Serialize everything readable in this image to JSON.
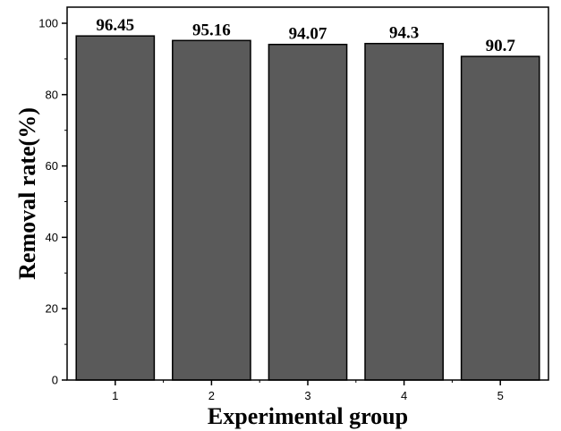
{
  "chart_data": {
    "type": "bar",
    "categories": [
      "1",
      "2",
      "3",
      "4",
      "5"
    ],
    "values": [
      96.45,
      95.16,
      94.07,
      94.3,
      90.7
    ],
    "data_labels": [
      "96.45",
      "95.16",
      "94.07",
      "94.3",
      "90.7"
    ],
    "title": "",
    "xlabel": "Experimental group",
    "ylabel": "Removal rate(%)",
    "ylim": [
      0,
      100
    ],
    "yticks": [
      0,
      20,
      40,
      60,
      80,
      100
    ],
    "grid": false,
    "legend": "none",
    "bar_color": "#5a5a5a",
    "bar_edge_color": "#000000"
  }
}
